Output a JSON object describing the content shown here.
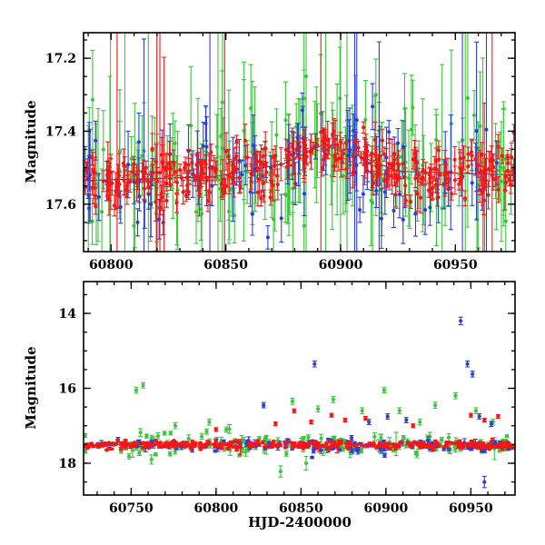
{
  "labels": {
    "y_axis": "Magnitude",
    "x_axis": "HJD-2400000"
  },
  "colors": {
    "red": "#f21818",
    "green": "#3fc43f",
    "blue": "#2b3fd6",
    "axis": "#000000",
    "trend": "#000000"
  },
  "chart_data": [
    {
      "id": "top",
      "type": "scatter",
      "title": "",
      "xlabel": "",
      "ylabel": "Magnitude",
      "xlim": [
        60788,
        60976
      ],
      "ylim": [
        17.13,
        17.73
      ],
      "y_inverted": true,
      "x_ticks": [
        60800,
        60850,
        60900,
        60950
      ],
      "x_minor_step": 10,
      "y_ticks": [
        17.2,
        17.4,
        17.6
      ],
      "y_tick_labels": [
        "17.2",
        "17.4",
        "17.6"
      ],
      "y_minor_step": 0.05,
      "trend": [
        [
          60788,
          17.535
        ],
        [
          60845,
          17.525
        ],
        [
          60875,
          17.49
        ],
        [
          60893,
          17.435
        ],
        [
          60905,
          17.46
        ],
        [
          60925,
          17.51
        ],
        [
          60976,
          17.52
        ]
      ],
      "series": [
        {
          "name": "green",
          "color": "green",
          "n": 150,
          "sigma": 0.09,
          "err_base": 0.06,
          "err_scale": 0.07,
          "big_err_frac": 0.1,
          "big_err_min": 0.25,
          "big_err_max": 0.85,
          "seed": 101,
          "follow_trend": true
        },
        {
          "name": "blue",
          "color": "blue",
          "n": 115,
          "sigma": 0.07,
          "err_base": 0.03,
          "err_scale": 0.04,
          "big_err_frac": 0.05,
          "big_err_min": 0.15,
          "big_err_max": 0.5,
          "seed": 202,
          "follow_trend": true
        },
        {
          "name": "red",
          "color": "red",
          "n": 340,
          "sigma": 0.035,
          "err_base": 0.015,
          "err_scale": 0.02,
          "big_err_frac": 0.03,
          "big_err_min": 0.2,
          "big_err_max": 0.7,
          "seed": 303,
          "follow_trend": true
        }
      ],
      "outliers": []
    },
    {
      "id": "bottom",
      "type": "scatter",
      "title": "",
      "xlabel": "HJD-2400000",
      "ylabel": "Magnitude",
      "xlim": [
        60722,
        60976
      ],
      "ylim": [
        13.15,
        18.85
      ],
      "y_inverted": true,
      "x_ticks": [
        60750,
        60800,
        60850,
        60900,
        60950
      ],
      "x_minor_step": 10,
      "y_ticks": [
        14,
        16,
        18
      ],
      "y_tick_labels": [
        "14",
        "16",
        "18"
      ],
      "y_minor_step": 0.5,
      "series": [
        {
          "name": "green",
          "color": "green",
          "n": 150,
          "mean": 17.5,
          "sigma": 0.14,
          "err_base": 0.03,
          "err_scale": 0.05,
          "big_err_frac": 0.03,
          "big_err_min": 0.15,
          "big_err_max": 0.35,
          "seed": 404
        },
        {
          "name": "blue",
          "color": "blue",
          "n": 115,
          "mean": 17.52,
          "sigma": 0.09,
          "err_base": 0.02,
          "err_scale": 0.04,
          "big_err_frac": 0.02,
          "big_err_min": 0.1,
          "big_err_max": 0.3,
          "seed": 505
        },
        {
          "name": "red",
          "color": "red",
          "n": 360,
          "mean": 17.52,
          "sigma": 0.05,
          "err_base": 0.012,
          "err_scale": 0.02,
          "big_err_frac": 0.01,
          "big_err_min": 0.1,
          "big_err_max": 0.25,
          "seed": 606
        }
      ],
      "outliers": [
        {
          "series": "green",
          "x": 60753,
          "y": 16.05,
          "err": 0.08
        },
        {
          "series": "green",
          "x": 60757,
          "y": 15.92,
          "err": 0.07
        },
        {
          "series": "green",
          "x": 60762,
          "y": 17.9,
          "err": 0.12
        },
        {
          "series": "green",
          "x": 60776,
          "y": 17.0,
          "err": 0.08
        },
        {
          "series": "green",
          "x": 60796,
          "y": 16.9,
          "err": 0.08
        },
        {
          "series": "green",
          "x": 60806,
          "y": 17.1,
          "err": 0.07
        },
        {
          "series": "green",
          "x": 60838,
          "y": 18.22,
          "err": 0.15
        },
        {
          "series": "green",
          "x": 60845,
          "y": 16.35,
          "err": 0.08
        },
        {
          "series": "green",
          "x": 60853,
          "y": 18.0,
          "err": 0.18
        },
        {
          "series": "green",
          "x": 60860,
          "y": 16.55,
          "err": 0.08
        },
        {
          "series": "green",
          "x": 60869,
          "y": 16.3,
          "err": 0.08
        },
        {
          "series": "green",
          "x": 60886,
          "y": 16.6,
          "err": 0.08
        },
        {
          "series": "green",
          "x": 60899,
          "y": 16.05,
          "err": 0.07
        },
        {
          "series": "green",
          "x": 60908,
          "y": 16.6,
          "err": 0.08
        },
        {
          "series": "green",
          "x": 60920,
          "y": 16.9,
          "err": 0.08
        },
        {
          "series": "green",
          "x": 60929,
          "y": 16.45,
          "err": 0.08
        },
        {
          "series": "green",
          "x": 60941,
          "y": 16.2,
          "err": 0.08
        },
        {
          "series": "green",
          "x": 60953,
          "y": 16.6,
          "err": 0.08
        },
        {
          "series": "green",
          "x": 60963,
          "y": 16.9,
          "err": 0.08
        },
        {
          "series": "blue",
          "x": 60828,
          "y": 16.45,
          "err": 0.07
        },
        {
          "series": "blue",
          "x": 60858,
          "y": 15.35,
          "err": 0.08
        },
        {
          "series": "blue",
          "x": 60890,
          "y": 16.9,
          "err": 0.07
        },
        {
          "series": "blue",
          "x": 60901,
          "y": 16.75,
          "err": 0.07
        },
        {
          "series": "blue",
          "x": 60912,
          "y": 16.85,
          "err": 0.07
        },
        {
          "series": "blue",
          "x": 60944,
          "y": 14.2,
          "err": 0.1
        },
        {
          "series": "blue",
          "x": 60948,
          "y": 15.35,
          "err": 0.08
        },
        {
          "series": "blue",
          "x": 60951,
          "y": 15.62,
          "err": 0.08
        },
        {
          "series": "blue",
          "x": 60955,
          "y": 16.75,
          "err": 0.07
        },
        {
          "series": "blue",
          "x": 60958,
          "y": 18.5,
          "err": 0.15
        },
        {
          "series": "blue",
          "x": 60962,
          "y": 16.95,
          "err": 0.07
        },
        {
          "series": "red",
          "x": 60800,
          "y": 17.1,
          "err": 0.05
        },
        {
          "series": "red",
          "x": 60835,
          "y": 16.95,
          "err": 0.05
        },
        {
          "series": "red",
          "x": 60846,
          "y": 16.6,
          "err": 0.05
        },
        {
          "series": "red",
          "x": 60856,
          "y": 16.9,
          "err": 0.05
        },
        {
          "series": "red",
          "x": 60868,
          "y": 16.72,
          "err": 0.05
        },
        {
          "series": "red",
          "x": 60876,
          "y": 16.85,
          "err": 0.05
        },
        {
          "series": "red",
          "x": 60888,
          "y": 16.8,
          "err": 0.05
        },
        {
          "series": "red",
          "x": 60916,
          "y": 17.0,
          "err": 0.05
        },
        {
          "series": "red",
          "x": 60950,
          "y": 16.72,
          "err": 0.05
        },
        {
          "series": "red",
          "x": 60958,
          "y": 16.85,
          "err": 0.05
        },
        {
          "series": "red",
          "x": 60966,
          "y": 16.75,
          "err": 0.05
        }
      ]
    }
  ]
}
